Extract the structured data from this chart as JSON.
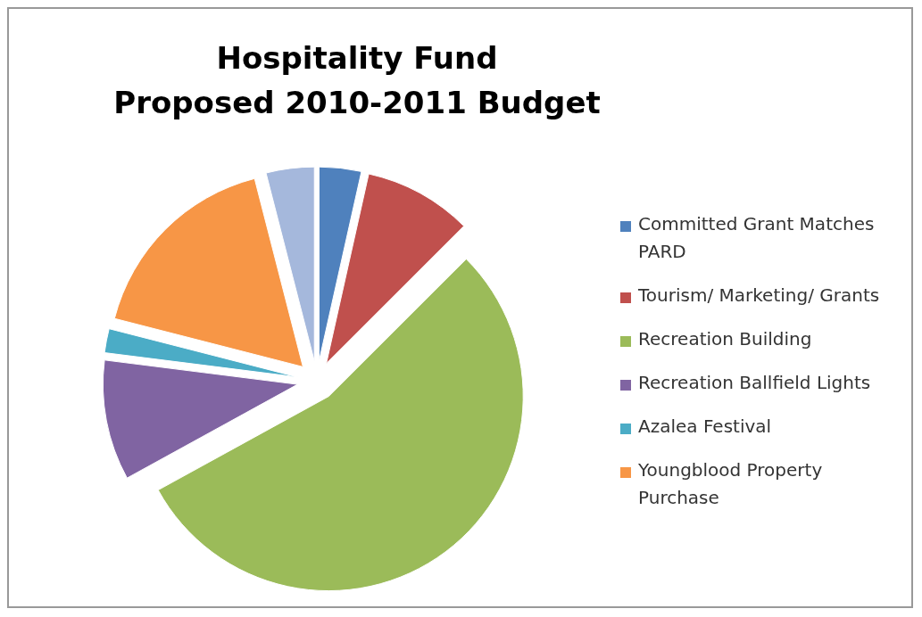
{
  "chart_data": {
    "type": "pie",
    "title": "Hospitality Fund\nProposed 2010-2011 Budget",
    "categories": [
      "Committed Grant Matches PARD",
      "Tourism/ Marketing/ Grants",
      "Recreation Building",
      "Recreation Ballfield Lights",
      "Azalea Festival",
      "Youngblood Property Purchase",
      null
    ],
    "values": [
      3.5,
      9,
      54.5,
      10,
      2,
      17,
      4
    ],
    "colors": [
      "#4f81bd",
      "#c0504d",
      "#9bbb59",
      "#8064a2",
      "#4bacc6",
      "#f79646",
      "#a5b8dc"
    ],
    "legend": "right"
  }
}
